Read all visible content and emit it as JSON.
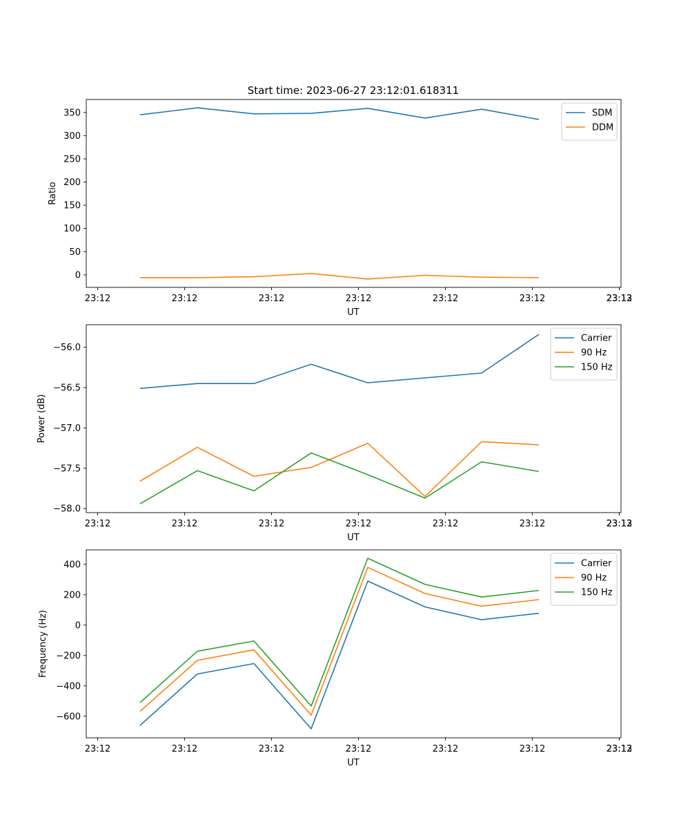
{
  "figure": {
    "title": "Start time: 2023-06-27 23:12:01.618311"
  },
  "chart_data": [
    {
      "type": "line",
      "xlabel": "UT",
      "ylabel": "Ratio",
      "x_tick_labels": [
        "23:12",
        "23:12",
        "23:12",
        "23:12",
        "23:12",
        "23:12",
        "23:12",
        "23:13"
      ],
      "y_ticks": [
        0,
        50,
        100,
        150,
        200,
        250,
        300,
        350
      ],
      "ylim": [
        -27,
        378
      ],
      "legend_position": "top-right",
      "series": [
        {
          "name": "SDM",
          "color": "#1f77b4",
          "values": [
            345,
            360,
            347,
            348,
            359,
            338,
            357,
            335
          ]
        },
        {
          "name": "DDM",
          "color": "#ff7f0e",
          "values": [
            -6,
            -6,
            -4,
            3,
            -9,
            -1,
            -5,
            -6
          ]
        }
      ]
    },
    {
      "type": "line",
      "xlabel": "UT",
      "ylabel": "Power (dB)",
      "x_tick_labels": [
        "23:12",
        "23:12",
        "23:12",
        "23:12",
        "23:12",
        "23:12",
        "23:12",
        "23:13"
      ],
      "y_ticks": [
        -58.0,
        -57.5,
        -57.0,
        -56.5,
        -56.0
      ],
      "y_tick_labels": [
        "−58.0",
        "−57.5",
        "−57.0",
        "−56.5",
        "−56.0"
      ],
      "ylim": [
        -58.05,
        -55.72
      ],
      "legend_position": "top-right",
      "series": [
        {
          "name": "Carrier",
          "color": "#1f77b4",
          "values": [
            -56.51,
            -56.45,
            -56.45,
            -56.21,
            -56.44,
            -56.38,
            -56.32,
            -55.84
          ]
        },
        {
          "name": "90 Hz",
          "color": "#ff7f0e",
          "values": [
            -57.66,
            -57.24,
            -57.6,
            -57.49,
            -57.19,
            -57.85,
            -57.17,
            -57.21
          ]
        },
        {
          "name": "150 Hz",
          "color": "#2ca02c",
          "values": [
            -57.94,
            -57.53,
            -57.78,
            -57.31,
            -57.58,
            -57.87,
            -57.42,
            -57.54
          ]
        }
      ]
    },
    {
      "type": "line",
      "xlabel": "UT",
      "ylabel": "Frequency (Hz)",
      "x_tick_labels": [
        "23:12",
        "23:12",
        "23:12",
        "23:12",
        "23:12",
        "23:12",
        "23:12",
        "23:13"
      ],
      "y_ticks": [
        -600,
        -400,
        -200,
        0,
        200,
        400
      ],
      "y_tick_labels": [
        "−600",
        "−400",
        "−200",
        "0",
        "200",
        "400"
      ],
      "ylim": [
        -742,
        495
      ],
      "legend_position": "top-right",
      "series": [
        {
          "name": "Carrier",
          "color": "#1f77b4",
          "values": [
            -660,
            -322,
            -253,
            -683,
            290,
            120,
            35,
            78
          ]
        },
        {
          "name": "90 Hz",
          "color": "#ff7f0e",
          "values": [
            -568,
            -232,
            -163,
            -593,
            380,
            208,
            124,
            168
          ]
        },
        {
          "name": "150 Hz",
          "color": "#2ca02c",
          "values": [
            -510,
            -172,
            -105,
            -533,
            440,
            268,
            185,
            228
          ]
        }
      ]
    }
  ]
}
